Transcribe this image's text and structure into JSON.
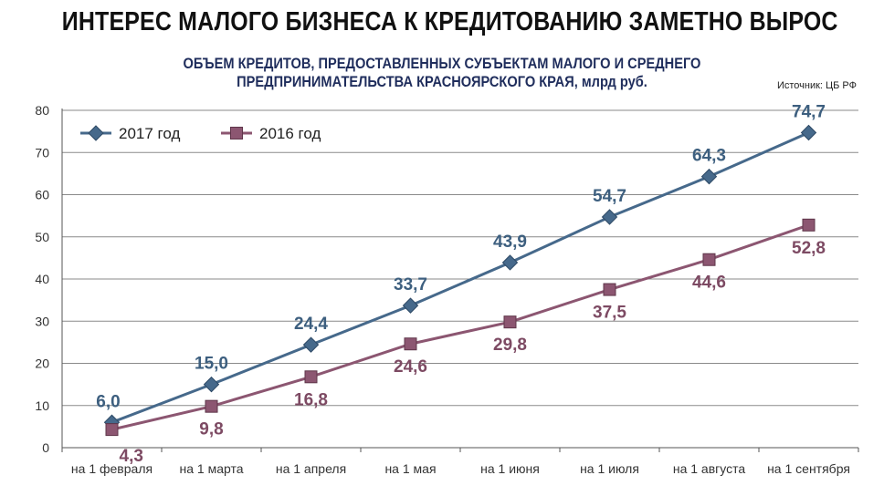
{
  "header": {
    "title": "ИНТЕРЕС МАЛОГО БИЗНЕСА К КРЕДИТОВАНИЮ ЗАМЕТНО ВЫРОС",
    "subtitle_line1": "ОБЪЕМ КРЕДИТОВ, ПРЕДОСТАВЛЕННЫХ СУБЪЕКТАМ МАЛОГО И СРЕДНЕГО",
    "subtitle_line2": "ПРЕДПРИНИМАТЕЛЬСТВА КРАСНОЯРСКОГО КРАЯ, млрд руб.",
    "source": "Источник: ЦБ РФ"
  },
  "chart_data": {
    "type": "line",
    "categories": [
      "на 1 февраля",
      "на 1 марта",
      "на 1 апреля",
      "на 1 мая",
      "на 1 июня",
      "на 1 июля",
      "на 1 августа",
      "на 1 сентября"
    ],
    "series": [
      {
        "name": "2017 год",
        "values": [
          6.0,
          15.0,
          24.4,
          33.7,
          43.9,
          54.7,
          64.3,
          74.7
        ],
        "labels": [
          "6,0",
          "15,0",
          "24,4",
          "33,7",
          "43,9",
          "54,7",
          "64,3",
          "74,7"
        ],
        "color": "#46698b",
        "marker": "diamond"
      },
      {
        "name": "2016 год",
        "values": [
          4.3,
          9.8,
          16.8,
          24.6,
          29.8,
          37.5,
          44.6,
          52.8
        ],
        "labels": [
          "4,3",
          "9,8",
          "16,8",
          "24,6",
          "29,8",
          "37,5",
          "44,6",
          "52,8"
        ],
        "color": "#8c5671",
        "marker": "square"
      }
    ],
    "yticks": [
      "0",
      "10",
      "20",
      "30",
      "40",
      "50",
      "60",
      "70",
      "80"
    ],
    "ylim": [
      0,
      80
    ],
    "grid": true,
    "legend": "top-left"
  }
}
